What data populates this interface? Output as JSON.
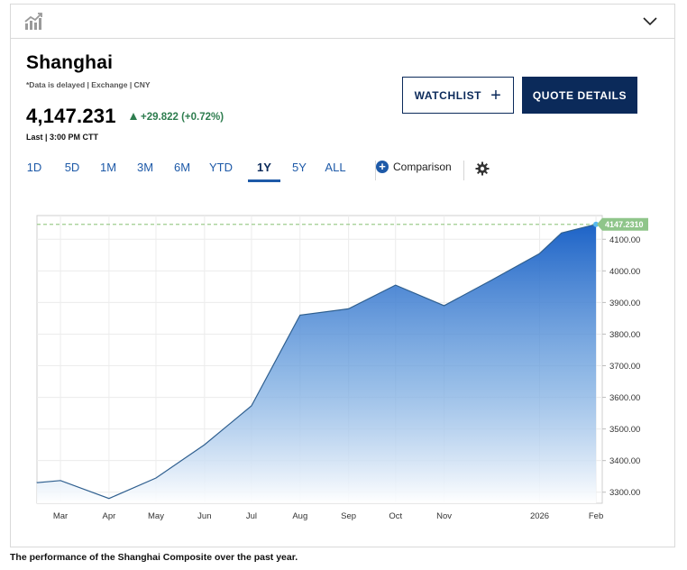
{
  "header": {
    "chart_icon": "chart-line-icon",
    "collapse_icon": "chevron-down-icon"
  },
  "quote": {
    "title": "Shanghai",
    "delay_note": "*Data is delayed | Exchange | CNY",
    "price": "4,147.231",
    "change": "+29.822 (+0.72%)",
    "last_time": "Last | 3:00 PM CTT"
  },
  "buttons": {
    "watchlist": "WATCHLIST",
    "quote_details": "QUOTE DETAILS"
  },
  "ranges": [
    "1D",
    "5D",
    "1M",
    "3M",
    "6M",
    "YTD",
    "1Y",
    "5Y",
    "ALL"
  ],
  "active_range": "1Y",
  "comparison_label": "Comparison",
  "settings_icon": "gear-icon",
  "colors": {
    "accent": "#1e5aa8",
    "navy": "#0b2a5a",
    "positive": "#2e7d4f",
    "last_price_tag": "#8fc58a"
  },
  "chart_data": {
    "type": "area",
    "title": "",
    "xlabel": "",
    "ylabel": "",
    "x_tick_labels": [
      "Mar",
      "Apr",
      "May",
      "Jun",
      "Jul",
      "Aug",
      "Sep",
      "Oct",
      "Nov",
      "2026",
      "Feb"
    ],
    "x": [
      "2025-02-14",
      "2025-03-01",
      "2025-04-01",
      "2025-05-01",
      "2025-06-01",
      "2025-07-01",
      "2025-08-01",
      "2025-09-01",
      "2025-10-01",
      "2025-11-01",
      "2025-12-01",
      "2026-01-01",
      "2026-01-15",
      "2026-02-06"
    ],
    "series": [
      {
        "values": [
          3330,
          3337,
          3280,
          3345,
          3450,
          3573,
          3860,
          3880,
          3955,
          3890,
          3970,
          4055,
          4120,
          4147.231
        ]
      }
    ],
    "y_tick_labels": [
      "3300.00",
      "3400.00",
      "3500.00",
      "3600.00",
      "3700.00",
      "3800.00",
      "3900.00",
      "4000.00",
      "4100.00"
    ],
    "ylim": [
      3265,
      4175
    ],
    "last_value_label": "4147.2310",
    "last_value": 4147.231,
    "grid": true,
    "caption": "The performance of the Shanghai Composite over the past year."
  }
}
